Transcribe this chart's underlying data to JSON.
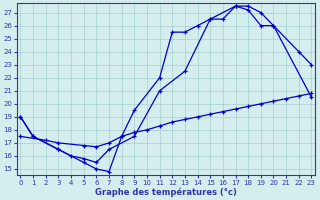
{
  "title": "Graphe des températures (°c)",
  "bg_color": "#d4eeed",
  "grid_color": "#aacece",
  "line_color": "#0000cc",
  "axis_color": "#3333aa",
  "ylim": [
    14.5,
    27.7
  ],
  "xlim": [
    -0.3,
    23.3
  ],
  "yticks": [
    15,
    16,
    17,
    18,
    19,
    20,
    21,
    22,
    23,
    24,
    25,
    26,
    27
  ],
  "xticks": [
    0,
    1,
    2,
    3,
    4,
    5,
    6,
    7,
    8,
    9,
    10,
    11,
    12,
    13,
    14,
    15,
    16,
    17,
    18,
    19,
    20,
    21,
    22,
    23
  ],
  "line1_x": [
    0,
    1,
    3,
    5,
    6,
    7,
    8,
    9,
    11,
    12,
    13,
    14,
    15,
    16,
    17,
    18,
    19,
    20,
    22,
    23
  ],
  "line1_y": [
    19,
    17.5,
    16.5,
    15.5,
    15.0,
    14.8,
    17.5,
    19.5,
    22.0,
    25.5,
    25.5,
    26.0,
    26.5,
    26.5,
    27.5,
    27.5,
    27.0,
    26.0,
    24.0,
    23.0
  ],
  "line2_x": [
    0,
    1,
    3,
    4,
    5,
    6,
    7,
    9,
    11,
    13,
    15,
    17,
    18,
    19,
    20,
    23
  ],
  "line2_y": [
    19,
    17.5,
    16.5,
    16.0,
    15.8,
    15.5,
    16.5,
    17.5,
    21.0,
    22.5,
    26.5,
    27.5,
    27.2,
    26.0,
    26.0,
    20.5
  ],
  "line3_x": [
    0,
    2,
    3,
    5,
    6,
    7,
    8,
    9,
    10,
    11,
    12,
    13,
    14,
    15,
    16,
    17,
    18,
    19,
    20,
    21,
    22,
    23
  ],
  "line3_y": [
    17.5,
    17.2,
    17.0,
    16.8,
    16.7,
    17.0,
    17.5,
    17.8,
    18.0,
    18.3,
    18.6,
    18.8,
    19.0,
    19.2,
    19.4,
    19.6,
    19.8,
    20.0,
    20.2,
    20.4,
    20.6,
    20.8
  ]
}
